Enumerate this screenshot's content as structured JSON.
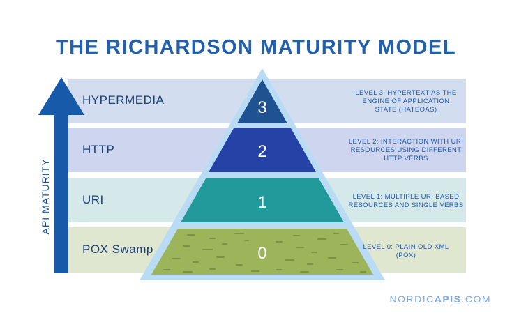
{
  "title": "THE RICHARDSON MATURITY MODEL",
  "axis_label": "API MATURITY",
  "levels": [
    {
      "number": "3",
      "name": "HYPERMEDIA",
      "description_lines": [
        "LEVEL 3: HYPERTEXT AS THE",
        "ENGINE OF APPLICATION",
        "STATE (HATEOAS)"
      ],
      "band_color": "#d2def0",
      "pyramid_color": "#1f5290"
    },
    {
      "number": "2",
      "name": "HTTP",
      "description_lines": [
        "LEVEL 2: INTERACTION WITH URI",
        "RESOURCES USING DIFFERENT",
        "HTTP VERBS"
      ],
      "band_color": "#cdd5ef",
      "pyramid_color": "#2543a6"
    },
    {
      "number": "1",
      "name": "URI",
      "description_lines": [
        "LEVEL 1: MULTIPLE URI BASED",
        "RESOURCES AND SINGLE VERBS"
      ],
      "band_color": "#d5e9ea",
      "pyramid_color": "#22999a"
    },
    {
      "number": "0",
      "name": "POX Swamp",
      "description_lines": [
        "LEVEL 0: PLAIN OLD XML",
        "(POX)"
      ],
      "band_color": "#dfe7d1",
      "pyramid_color": "#9cb45a"
    }
  ],
  "brand": {
    "prefix": "NORDIC",
    "emphasis": "APIS",
    "suffix": ".COM"
  },
  "colors": {
    "title": "#2060ad",
    "arrow": "#165aa9",
    "pyramid_border": "#b9dcf4",
    "swamp_dots": "#6d8a3d"
  }
}
